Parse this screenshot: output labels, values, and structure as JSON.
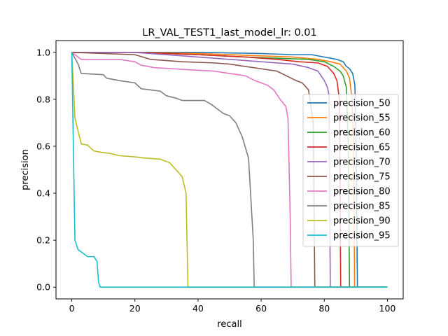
{
  "chart_data": {
    "type": "line",
    "title": "LR_VAL_TEST1_last_model_lr: 0.01",
    "xlabel": "recall",
    "ylabel": "precision",
    "xlim": [
      -5,
      105
    ],
    "ylim": [
      -0.05,
      1.05
    ],
    "xticks": [
      0,
      20,
      40,
      60,
      80,
      100
    ],
    "yticks": [
      0.0,
      0.2,
      0.4,
      0.6,
      0.8,
      1.0
    ],
    "xtick_labels": [
      "0",
      "20",
      "40",
      "60",
      "80",
      "100"
    ],
    "ytick_labels": [
      "0.0",
      "0.2",
      "0.4",
      "0.6",
      "0.8",
      "1.0"
    ],
    "grid": false,
    "legend_position": "right",
    "series": [
      {
        "name": "precision_50",
        "color": "#1f77b4",
        "points": [
          [
            0,
            1.0
          ],
          [
            20,
            1.0
          ],
          [
            40,
            1.0
          ],
          [
            60,
            0.995
          ],
          [
            70,
            0.99
          ],
          [
            76,
            0.99
          ],
          [
            80,
            0.98
          ],
          [
            84,
            0.97
          ],
          [
            86,
            0.96
          ],
          [
            87,
            0.94
          ],
          [
            88,
            0.93
          ],
          [
            89,
            0.91
          ],
          [
            89.7,
            0.86
          ],
          [
            90.1,
            0.6
          ],
          [
            90.5,
            0.0
          ],
          [
            100,
            0.0
          ]
        ]
      },
      {
        "name": "precision_55",
        "color": "#ff7f0e",
        "points": [
          [
            0,
            1.0
          ],
          [
            20,
            1.0
          ],
          [
            40,
            0.995
          ],
          [
            60,
            0.985
          ],
          [
            70,
            0.98
          ],
          [
            78,
            0.97
          ],
          [
            82,
            0.96
          ],
          [
            85,
            0.95
          ],
          [
            87,
            0.92
          ],
          [
            88,
            0.89
          ],
          [
            88.8,
            0.8
          ],
          [
            89.3,
            0.6
          ],
          [
            89.6,
            0.0
          ],
          [
            100,
            0.0
          ]
        ]
      },
      {
        "name": "precision_60",
        "color": "#2ca02c",
        "points": [
          [
            0,
            1.0
          ],
          [
            20,
            1.0
          ],
          [
            40,
            0.99
          ],
          [
            55,
            0.98
          ],
          [
            65,
            0.975
          ],
          [
            75,
            0.97
          ],
          [
            80,
            0.96
          ],
          [
            83,
            0.94
          ],
          [
            85,
            0.92
          ],
          [
            86,
            0.9
          ],
          [
            87,
            0.85
          ],
          [
            87.6,
            0.6
          ],
          [
            88,
            0.0
          ],
          [
            100,
            0.0
          ]
        ]
      },
      {
        "name": "precision_65",
        "color": "#d62728",
        "points": [
          [
            0,
            1.0
          ],
          [
            20,
            1.0
          ],
          [
            40,
            0.99
          ],
          [
            55,
            0.98
          ],
          [
            65,
            0.97
          ],
          [
            72,
            0.96
          ],
          [
            78,
            0.955
          ],
          [
            81,
            0.94
          ],
          [
            83,
            0.91
          ],
          [
            84,
            0.88
          ],
          [
            84.8,
            0.8
          ],
          [
            85.2,
            0.0
          ],
          [
            100,
            0.0
          ]
        ]
      },
      {
        "name": "precision_70",
        "color": "#9467bd",
        "points": [
          [
            0,
            1.0
          ],
          [
            20,
            1.0
          ],
          [
            35,
            0.985
          ],
          [
            50,
            0.97
          ],
          [
            60,
            0.96
          ],
          [
            70,
            0.95
          ],
          [
            75,
            0.935
          ],
          [
            78,
            0.92
          ],
          [
            80,
            0.88
          ],
          [
            81,
            0.85
          ],
          [
            81.5,
            0.82
          ],
          [
            81.9,
            0.0
          ],
          [
            100,
            0.0
          ]
        ]
      },
      {
        "name": "precision_75",
        "color": "#8c564b",
        "points": [
          [
            0,
            1.0
          ],
          [
            20,
            0.99
          ],
          [
            25,
            0.97
          ],
          [
            35,
            0.96
          ],
          [
            45,
            0.955
          ],
          [
            50,
            0.95
          ],
          [
            55,
            0.94
          ],
          [
            60,
            0.93
          ],
          [
            65,
            0.92
          ],
          [
            68,
            0.9
          ],
          [
            71,
            0.88
          ],
          [
            73,
            0.87
          ],
          [
            75,
            0.84
          ],
          [
            76.5,
            0.7
          ],
          [
            77,
            0.0
          ],
          [
            100,
            0.0
          ]
        ]
      },
      {
        "name": "precision_80",
        "color": "#e377c2",
        "points": [
          [
            0,
            1.0
          ],
          [
            3,
            0.97
          ],
          [
            15,
            0.97
          ],
          [
            20,
            0.96
          ],
          [
            22,
            0.945
          ],
          [
            26,
            0.935
          ],
          [
            32,
            0.93
          ],
          [
            38,
            0.925
          ],
          [
            45,
            0.92
          ],
          [
            50,
            0.91
          ],
          [
            55,
            0.9
          ],
          [
            58,
            0.88
          ],
          [
            62,
            0.86
          ],
          [
            64,
            0.84
          ],
          [
            66,
            0.8
          ],
          [
            67.8,
            0.77
          ],
          [
            68.5,
            0.72
          ],
          [
            69.2,
            0.3
          ],
          [
            69.5,
            0.0
          ],
          [
            100,
            0.0
          ]
        ]
      },
      {
        "name": "precision_85",
        "color": "#7f7f7f",
        "points": [
          [
            0,
            1.0
          ],
          [
            2,
            0.95
          ],
          [
            3,
            0.91
          ],
          [
            10,
            0.905
          ],
          [
            11,
            0.89
          ],
          [
            15,
            0.88
          ],
          [
            20,
            0.87
          ],
          [
            22,
            0.845
          ],
          [
            28,
            0.835
          ],
          [
            30,
            0.815
          ],
          [
            33,
            0.805
          ],
          [
            35,
            0.795
          ],
          [
            42,
            0.795
          ],
          [
            44,
            0.78
          ],
          [
            46,
            0.76
          ],
          [
            48,
            0.74
          ],
          [
            50,
            0.73
          ],
          [
            52,
            0.7
          ],
          [
            54,
            0.64
          ],
          [
            56,
            0.55
          ],
          [
            57.5,
            0.2
          ],
          [
            57.8,
            0.0
          ],
          [
            100,
            0.0
          ]
        ]
      },
      {
        "name": "precision_90",
        "color": "#bcbd22",
        "points": [
          [
            0,
            1.0
          ],
          [
            1,
            0.72
          ],
          [
            3,
            0.61
          ],
          [
            5,
            0.605
          ],
          [
            7,
            0.58
          ],
          [
            9,
            0.575
          ],
          [
            12,
            0.57
          ],
          [
            15,
            0.56
          ],
          [
            20,
            0.555
          ],
          [
            23,
            0.55
          ],
          [
            28,
            0.545
          ],
          [
            31,
            0.53
          ],
          [
            33,
            0.5
          ],
          [
            35,
            0.47
          ],
          [
            36.2,
            0.4
          ],
          [
            36.8,
            0.0
          ],
          [
            100,
            0.0
          ]
        ]
      },
      {
        "name": "precision_95",
        "color": "#17becf",
        "points": [
          [
            0,
            1.0
          ],
          [
            1,
            0.2
          ],
          [
            2,
            0.16
          ],
          [
            4,
            0.14
          ],
          [
            5,
            0.13
          ],
          [
            7,
            0.13
          ],
          [
            8,
            0.11
          ],
          [
            8.5,
            0.02
          ],
          [
            9,
            0.0
          ],
          [
            100,
            0.0
          ]
        ]
      }
    ]
  }
}
